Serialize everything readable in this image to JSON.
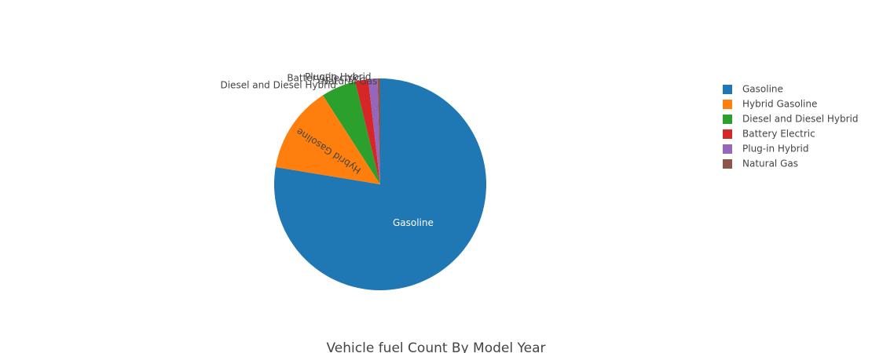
{
  "chart_data": {
    "type": "pie",
    "title": "Vehicle fuel Count By Model Year",
    "labels": [
      "Gasoline",
      "Hybrid Gasoline",
      "Diesel and Diesel Hybrid",
      "Battery Electric",
      "Plug-in Hybrid",
      "Natural Gas"
    ],
    "values": [
      77.6,
      13.3,
      5.3,
      2.0,
      1.4,
      0.4
    ],
    "value_unit": "percent of total (estimated from slice angles)",
    "colors": [
      "#1f77b4",
      "#ff7f0e",
      "#2ca02c",
      "#d62728",
      "#9467bd",
      "#8c564b"
    ],
    "direction": "clockwise",
    "start": "top",
    "legend": {
      "placement": "right",
      "entries": [
        "Gasoline",
        "Hybrid Gasoline",
        "Diesel and Diesel Hybrid",
        "Battery Electric",
        "Plug-in Hybrid",
        "Natural Gas"
      ]
    }
  }
}
